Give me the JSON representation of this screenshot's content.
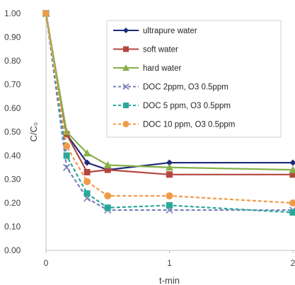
{
  "chart_data": {
    "type": "line",
    "xlabel": "t-min",
    "ylabel": "C/C₀",
    "xlim": [
      0,
      2
    ],
    "ylim": [
      0,
      1
    ],
    "xticks": [
      {
        "value": 0,
        "label": "0"
      },
      {
        "value": 1,
        "label": "1"
      },
      {
        "value": 2,
        "label": "2"
      }
    ],
    "yticks": [
      {
        "value": 0.0,
        "label": "0.00"
      },
      {
        "value": 0.1,
        "label": "0.10"
      },
      {
        "value": 0.2,
        "label": "0.20"
      },
      {
        "value": 0.3,
        "label": "0.30"
      },
      {
        "value": 0.4,
        "label": "0.40"
      },
      {
        "value": 0.5,
        "label": "0.50"
      },
      {
        "value": 0.6,
        "label": "0.60"
      },
      {
        "value": 0.7,
        "label": "0.70"
      },
      {
        "value": 0.8,
        "label": "0.80"
      },
      {
        "value": 0.9,
        "label": "0.90"
      },
      {
        "value": 1.0,
        "label": "1.00"
      }
    ],
    "grid": false,
    "legend_position": "top-right",
    "series": [
      {
        "name": "ultrapure water",
        "color": "#1f2a7a",
        "marker": "diamond",
        "dash": "solid",
        "x": [
          0,
          0.167,
          0.333,
          0.5,
          1.0,
          2.0
        ],
        "y": [
          1.0,
          0.49,
          0.37,
          0.34,
          0.37,
          0.37
        ]
      },
      {
        "name": "soft water",
        "color": "#b3473f",
        "marker": "square",
        "dash": "solid",
        "x": [
          0,
          0.167,
          0.333,
          0.5,
          1.0,
          2.0
        ],
        "y": [
          1.0,
          0.49,
          0.33,
          0.34,
          0.32,
          0.32
        ]
      },
      {
        "name": "hard water",
        "color": "#86b04a",
        "marker": "triangle",
        "dash": "solid",
        "x": [
          0,
          0.167,
          0.333,
          0.5,
          1.0,
          2.0
        ],
        "y": [
          1.0,
          0.5,
          0.41,
          0.36,
          0.35,
          0.34
        ]
      },
      {
        "name": "DOC 2ppm, O3 0.5ppm",
        "color": "#7a7fb8",
        "marker": "x",
        "dash": "dashed",
        "x": [
          0,
          0.167,
          0.333,
          0.5,
          1.0,
          2.0
        ],
        "y": [
          1.0,
          0.35,
          0.22,
          0.17,
          0.17,
          0.17
        ]
      },
      {
        "name": "DOC 5 ppm, O3 0.5ppm",
        "color": "#2aa89a",
        "marker": "square",
        "dash": "dashed",
        "x": [
          0,
          0.167,
          0.333,
          0.5,
          1.0,
          2.0
        ],
        "y": [
          1.0,
          0.4,
          0.24,
          0.18,
          0.19,
          0.16
        ]
      },
      {
        "name": "DOC 10 ppm, O3 0.5ppm",
        "color": "#f09a48",
        "marker": "circle",
        "dash": "dashed",
        "x": [
          0,
          0.167,
          0.333,
          0.5,
          1.0,
          2.0
        ],
        "y": [
          1.0,
          0.44,
          0.29,
          0.23,
          0.23,
          0.2
        ]
      }
    ]
  }
}
